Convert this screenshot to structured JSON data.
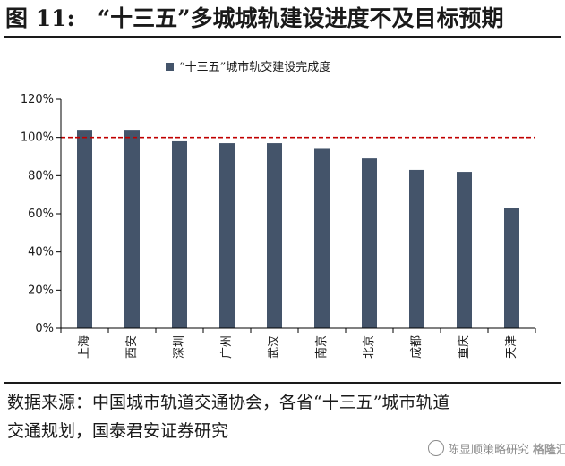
{
  "figure": {
    "title": "图 11:　“十三五”多城城轨建设进度不及目标预期",
    "source_line1": "数据来源：中国城市轨道交通协会，各省“十三五”城市轨道",
    "source_line2": "交通规划，国泰君安证券研究",
    "watermark_text": "陈显顺策略研究",
    "watermark_logo": "格隆汇"
  },
  "colors": {
    "bar": "#44546A",
    "reference_line": "#C00000",
    "axis": "#000000"
  },
  "chart_data": {
    "type": "bar",
    "legend": "“十三五”城市轨交建设完成度",
    "legend_position": "top-center",
    "categories": [
      "上海",
      "西安",
      "深圳",
      "广州",
      "武汉",
      "南京",
      "北京",
      "成都",
      "重庆",
      "天津"
    ],
    "values": [
      104,
      104,
      98,
      97,
      97,
      94,
      89,
      83,
      82,
      63
    ],
    "ylim": [
      0,
      120
    ],
    "yticks": [
      "0%",
      "20%",
      "40%",
      "60%",
      "80%",
      "100%",
      "120%"
    ],
    "reference_line": 100,
    "grid": false
  }
}
